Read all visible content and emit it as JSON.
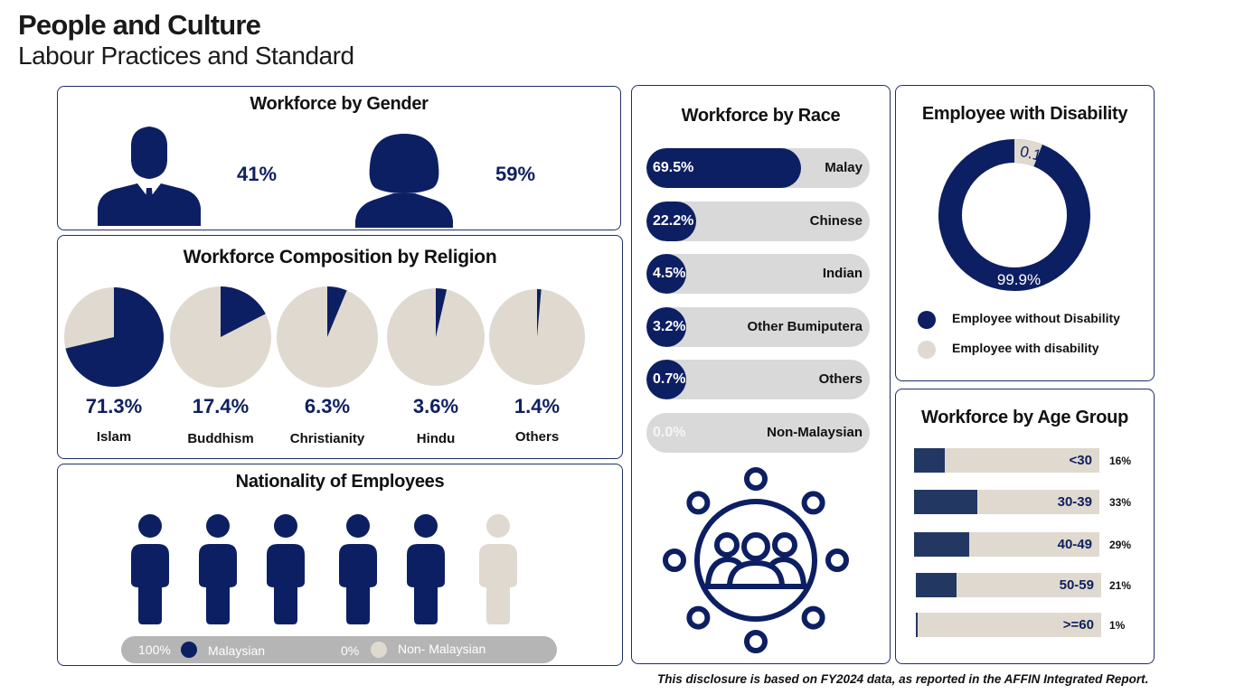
{
  "header": {
    "title": "People and Culture",
    "subtitle": "Labour Practices and Standard"
  },
  "colors": {
    "navy": "#0d1f63",
    "beige": "#e0d9cf",
    "grey": "#d9d9d9",
    "age_navy": "#233763"
  },
  "gender": {
    "title": "Workforce by Gender",
    "male": {
      "icon": "male-person-icon",
      "value": 41,
      "label": "41%"
    },
    "female": {
      "icon": "female-person-icon",
      "value": 59,
      "label": "59%"
    }
  },
  "religion": {
    "title": "Workforce Composition by Religion",
    "items": [
      {
        "name": "Islam",
        "value": 71.3,
        "label": "71.3%"
      },
      {
        "name": "Buddhism",
        "value": 17.4,
        "label": "17.4%"
      },
      {
        "name": "Christianity",
        "value": 6.3,
        "label": "6.3%"
      },
      {
        "name": "Hindu",
        "value": 3.6,
        "label": "3.6%"
      },
      {
        "name": "Others",
        "value": 1.4,
        "label": "1.4%"
      }
    ]
  },
  "nationality": {
    "title": "Nationality of Employees",
    "icon": "person-icon",
    "malaysian_pct": "100%",
    "malaysian_label": "Malaysian",
    "non_malaysian_pct": "0%",
    "non_malaysian_label": "Non- Malaysian",
    "filled_icons": 5,
    "total_icons": 6
  },
  "race": {
    "title": "Workforce by Race",
    "icon": "group-circle-icon",
    "items": [
      {
        "name": "Malay",
        "value": 69.5,
        "label": "69.5%"
      },
      {
        "name": "Chinese",
        "value": 22.2,
        "label": "22.2%"
      },
      {
        "name": "Indian",
        "value": 4.5,
        "label": "4.5%"
      },
      {
        "name": "Other Bumiputera",
        "value": 3.2,
        "label": "3.2%"
      },
      {
        "name": "Others",
        "value": 0.7,
        "label": "0.7%"
      },
      {
        "name": "Non-Malaysian",
        "value": 0.0,
        "label": "0.0%"
      }
    ]
  },
  "disability": {
    "title": "Employee with Disability",
    "without": {
      "value": 99.9,
      "label": "99.9%",
      "legend": "Employee without Disability"
    },
    "with": {
      "value": 0.1,
      "label": "0.1%",
      "legend": "Employee with disability"
    }
  },
  "age": {
    "title": "Workforce by Age Group",
    "items": [
      {
        "group": "<30",
        "value": 16,
        "label": "16%"
      },
      {
        "group": "30-39",
        "value": 33,
        "label": "33%"
      },
      {
        "group": "40-49",
        "value": 29,
        "label": "29%"
      },
      {
        "group": "50-59",
        "value": 21,
        "label": "21%"
      },
      {
        "group": ">=60",
        "value": 1,
        "label": "1%"
      }
    ]
  },
  "footnote": "This disclosure is based on FY2024 data, as reported in the AFFIN Integrated Report.",
  "chart_data": [
    {
      "type": "pie",
      "title": "Workforce by Gender",
      "categories": [
        "Male",
        "Female"
      ],
      "values": [
        41,
        59
      ]
    },
    {
      "type": "pie",
      "title": "Workforce Composition by Religion",
      "categories": [
        "Islam",
        "Buddhism",
        "Christianity",
        "Hindu",
        "Others"
      ],
      "values": [
        71.3,
        17.4,
        6.3,
        3.6,
        1.4
      ]
    },
    {
      "type": "bar",
      "title": "Nationality of Employees",
      "categories": [
        "Malaysian",
        "Non- Malaysian"
      ],
      "values": [
        100,
        0
      ]
    },
    {
      "type": "bar",
      "title": "Workforce by Race",
      "categories": [
        "Malay",
        "Chinese",
        "Indian",
        "Other Bumiputera",
        "Others",
        "Non-Malaysian"
      ],
      "values": [
        69.5,
        22.2,
        4.5,
        3.2,
        0.7,
        0.0
      ]
    },
    {
      "type": "pie",
      "title": "Employee with Disability",
      "categories": [
        "Employee without Disability",
        "Employee with disability"
      ],
      "values": [
        99.9,
        0.1
      ]
    },
    {
      "type": "bar",
      "title": "Workforce by Age Group",
      "categories": [
        "<30",
        "30-39",
        "40-49",
        "50-59",
        ">=60"
      ],
      "values": [
        16,
        33,
        29,
        21,
        1
      ]
    }
  ]
}
